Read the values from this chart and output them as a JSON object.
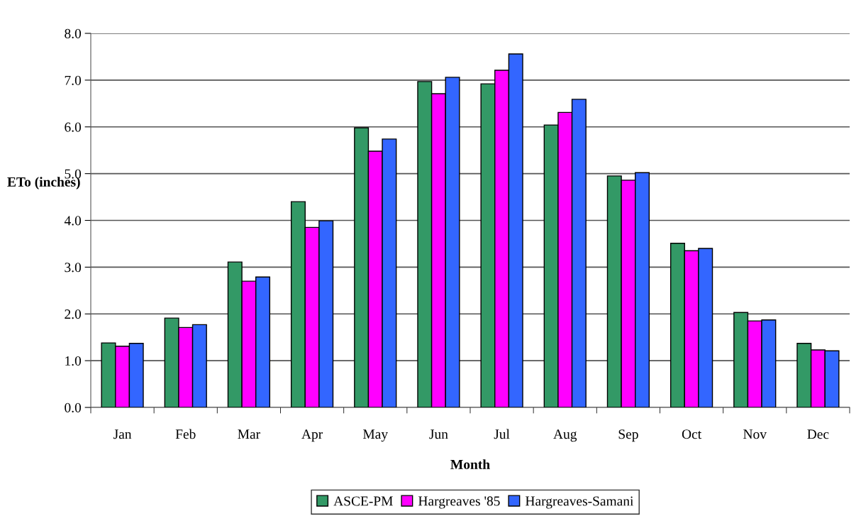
{
  "chart_data": {
    "type": "bar",
    "xlabel": "Month",
    "ylabel": "ETo (inches)",
    "categories": [
      "Jan",
      "Feb",
      "Mar",
      "Apr",
      "May",
      "Jun",
      "Jul",
      "Aug",
      "Sep",
      "Oct",
      "Nov",
      "Dec"
    ],
    "series": [
      {
        "name": "ASCE-PM",
        "color": "#339966",
        "values": [
          1.38,
          1.91,
          3.11,
          4.4,
          5.98,
          6.97,
          6.92,
          6.04,
          4.95,
          3.51,
          2.03,
          1.37
        ]
      },
      {
        "name": "Hargreaves '85",
        "color": "#ff00ff",
        "values": [
          1.31,
          1.71,
          2.7,
          3.85,
          5.48,
          6.71,
          7.21,
          6.31,
          4.86,
          3.35,
          1.85,
          1.23
        ]
      },
      {
        "name": "Hargreaves-Samani",
        "color": "#3366ff",
        "values": [
          1.37,
          1.77,
          2.79,
          3.99,
          5.74,
          7.06,
          7.56,
          6.59,
          5.02,
          3.4,
          1.87,
          1.21
        ]
      }
    ],
    "ylim": [
      0,
      8
    ],
    "yticks": [
      {
        "value": 0,
        "label": "0.0"
      },
      {
        "value": 1,
        "label": "1.0"
      },
      {
        "value": 2,
        "label": "2.0"
      },
      {
        "value": 3,
        "label": "3.0"
      },
      {
        "value": 4,
        "label": "4.0"
      },
      {
        "value": 5,
        "label": "5.0"
      },
      {
        "value": 6,
        "label": "6.0"
      },
      {
        "value": 7,
        "label": "7.0"
      },
      {
        "value": 8,
        "label": "8.0"
      }
    ],
    "grid": "y",
    "legend": "bottom"
  }
}
